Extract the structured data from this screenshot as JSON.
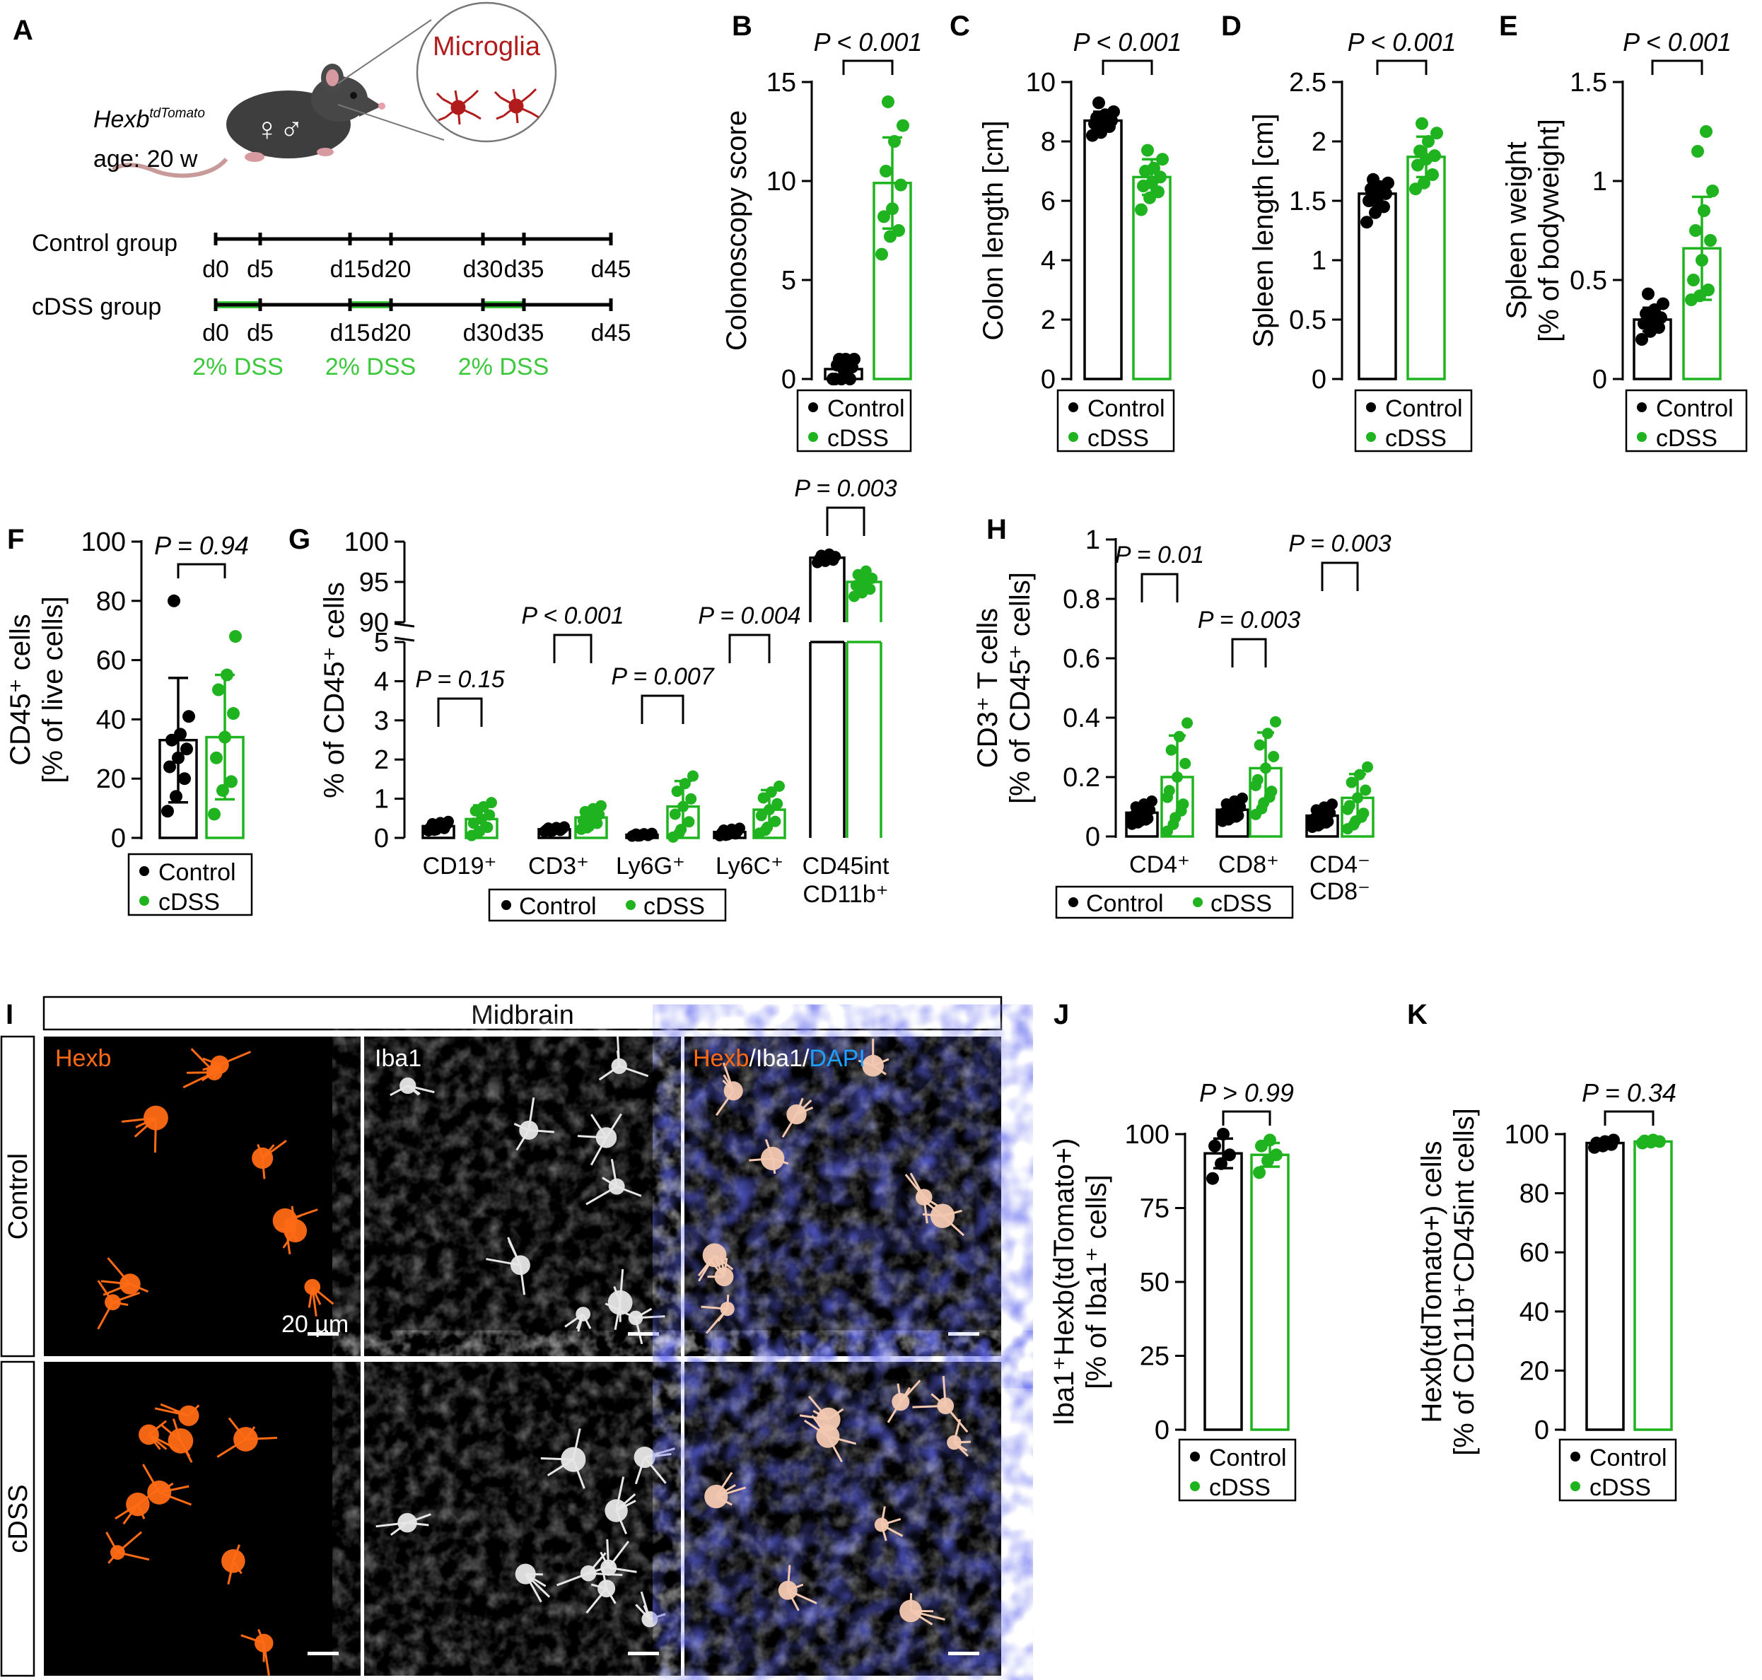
{
  "colors": {
    "control": "#000000",
    "cdss": "#1fb31f",
    "dss_green": "#3cc83c",
    "hexb": "#ff6a14",
    "dapi": "#1ea0ff",
    "microglia": "#b11b1b"
  },
  "panel_a": {
    "label": "A",
    "mouse_line": "Hexb",
    "mouse_line_sup": "tdTomato",
    "age": "age: 20 w",
    "sex_symbols": "♀♂",
    "zoom_label": "Microglia",
    "control_group": "Control group",
    "cdss_group": "cDSS group",
    "days": [
      "d0",
      "d5",
      "d15",
      "d20",
      "d30",
      "d35",
      "d45"
    ],
    "dss_label": "2% DSS"
  },
  "legend": {
    "control": "Control",
    "cdss": "cDSS"
  },
  "chart_data": [
    {
      "panel": "B",
      "type": "bar",
      "ylabel": "Colonoscopy score",
      "ylim": [
        0,
        15
      ],
      "yticks": [
        0,
        5,
        10,
        15
      ],
      "categories": [
        "Control",
        "cDSS"
      ],
      "series": [
        {
          "name": "Control",
          "mean": 0.5,
          "sd": 0.5,
          "points": [
            0,
            0,
            0,
            0,
            0.5,
            0.6,
            0.7,
            1,
            1,
            1
          ]
        },
        {
          "name": "cDSS",
          "mean": 9.9,
          "sd": 2.3,
          "points": [
            6.3,
            7.2,
            7.5,
            8.2,
            8.6,
            9.8,
            10.5,
            12,
            12.8,
            14
          ]
        }
      ],
      "pvalues": [
        "P < 0.001"
      ]
    },
    {
      "panel": "C",
      "type": "bar",
      "ylabel": "Colon length [cm]",
      "ylim": [
        0,
        10
      ],
      "yticks": [
        0,
        2,
        4,
        6,
        8,
        10
      ],
      "categories": [
        "Control",
        "cDSS"
      ],
      "series": [
        {
          "name": "Control",
          "mean": 8.7,
          "sd": 0.3,
          "points": [
            8.2,
            8.3,
            8.5,
            8.6,
            8.7,
            8.7,
            8.8,
            8.9,
            9.0,
            9.3
          ]
        },
        {
          "name": "cDSS",
          "mean": 6.8,
          "sd": 0.6,
          "points": [
            5.7,
            6.1,
            6.3,
            6.5,
            6.6,
            6.8,
            7.0,
            7.1,
            7.4,
            7.7
          ]
        }
      ],
      "pvalues": [
        "P < 0.001"
      ]
    },
    {
      "panel": "D",
      "type": "bar",
      "ylabel": "Spleen length [cm]",
      "ylim": [
        0,
        2.5
      ],
      "yticks": [
        0,
        0.5,
        1.0,
        1.5,
        2.0,
        2.5
      ],
      "categories": [
        "Control",
        "cDSS"
      ],
      "series": [
        {
          "name": "Control",
          "mean": 1.56,
          "sd": 0.1,
          "points": [
            1.32,
            1.4,
            1.45,
            1.5,
            1.52,
            1.56,
            1.6,
            1.62,
            1.65,
            1.68
          ]
        },
        {
          "name": "cDSS",
          "mean": 1.87,
          "sd": 0.17,
          "points": [
            1.6,
            1.65,
            1.72,
            1.8,
            1.85,
            1.88,
            1.92,
            2.0,
            2.07,
            2.15
          ]
        }
      ],
      "pvalues": [
        "P < 0.001"
      ]
    },
    {
      "panel": "E",
      "type": "bar",
      "ylabel": [
        "Spleen weight",
        "[% of bodyweight]"
      ],
      "ylim": [
        0,
        1.5
      ],
      "yticks": [
        0,
        0.5,
        1.0,
        1.5
      ],
      "categories": [
        "Control",
        "cDSS"
      ],
      "series": [
        {
          "name": "Control",
          "mean": 0.3,
          "sd": 0.06,
          "points": [
            0.2,
            0.24,
            0.26,
            0.28,
            0.3,
            0.31,
            0.33,
            0.35,
            0.38,
            0.43
          ]
        },
        {
          "name": "cDSS",
          "mean": 0.66,
          "sd": 0.26,
          "points": [
            0.4,
            0.42,
            0.45,
            0.5,
            0.6,
            0.7,
            0.75,
            0.85,
            0.95,
            1.15,
            1.25
          ]
        }
      ],
      "pvalues": [
        "P < 0.001"
      ]
    },
    {
      "panel": "F",
      "type": "bar",
      "ylabel": [
        "CD45⁺ cells",
        "[% of live cells]"
      ],
      "ylim": [
        0,
        100
      ],
      "yticks": [
        0,
        20,
        40,
        60,
        80,
        100
      ],
      "categories": [
        "Control",
        "cDSS"
      ],
      "series": [
        {
          "name": "Control",
          "mean": 33,
          "sd": 21,
          "points": [
            9,
            14,
            20,
            24,
            27,
            30,
            33,
            35,
            41,
            80
          ]
        },
        {
          "name": "cDSS",
          "mean": 34,
          "sd": 21,
          "points": [
            8,
            16,
            19,
            27,
            34,
            42,
            50,
            55,
            68
          ]
        }
      ],
      "pvalues": [
        "P = 0.94"
      ]
    },
    {
      "panel": "G",
      "type": "bar",
      "ylabel": "% of CD45⁺ cells",
      "ylim_lower": [
        0,
        5
      ],
      "yticks_lower": [
        0,
        1,
        2,
        3,
        4,
        5
      ],
      "ylim_upper": [
        90,
        100
      ],
      "yticks_upper": [
        90,
        95,
        100
      ],
      "categories": [
        "CD19⁺",
        "CD3⁺",
        "Ly6G⁺",
        "Ly6C⁺",
        "CD45int CD11b⁺"
      ],
      "series": [
        {
          "name": "Control",
          "means": [
            0.3,
            0.22,
            0.08,
            0.15,
            98
          ],
          "sds": [
            0.1,
            0.05,
            0.03,
            0.08,
            0.5
          ]
        },
        {
          "name": "cDSS",
          "means": [
            0.48,
            0.52,
            0.8,
            0.72,
            95
          ],
          "sds": [
            0.35,
            0.25,
            0.65,
            0.5,
            1.5
          ]
        }
      ],
      "pvalues": [
        "P = 0.15",
        "P < 0.001",
        "P = 0.007",
        "P = 0.004",
        "P = 0.003"
      ]
    },
    {
      "panel": "H",
      "type": "bar",
      "ylabel": [
        "CD3⁺ T cells",
        "[% of CD45⁺ cells]"
      ],
      "ylim": [
        0,
        1.0
      ],
      "yticks": [
        0,
        0.2,
        0.4,
        0.6,
        0.8,
        1.0
      ],
      "categories": [
        "CD4⁺",
        "CD8⁺",
        "CD4⁻ CD8⁻"
      ],
      "series": [
        {
          "name": "Control",
          "means": [
            0.08,
            0.09,
            0.07
          ],
          "sds": [
            0.03,
            0.03,
            0.03
          ]
        },
        {
          "name": "cDSS",
          "means": [
            0.2,
            0.23,
            0.13
          ],
          "sds": [
            0.14,
            0.12,
            0.08
          ]
        }
      ],
      "pvalues": [
        "P = 0.01",
        "P = 0.003",
        "P = 0.003"
      ]
    },
    {
      "panel": "J",
      "type": "bar",
      "ylabel": [
        "Iba1⁺Hexb(tdTomato+)",
        "[% of Iba1⁺ cells]"
      ],
      "ylim": [
        0,
        100
      ],
      "yticks": [
        0,
        25,
        50,
        75,
        100
      ],
      "categories": [
        "Control",
        "cDSS"
      ],
      "series": [
        {
          "name": "Control",
          "mean": 93.5,
          "sd": 5,
          "points": [
            85,
            90,
            93,
            96,
            100
          ]
        },
        {
          "name": "cDSS",
          "mean": 93,
          "sd": 4,
          "points": [
            87,
            91,
            93,
            96,
            98
          ]
        }
      ],
      "pvalues": [
        "P > 0.99"
      ]
    },
    {
      "panel": "K",
      "type": "bar",
      "ylabel": [
        "Hexb(tdTomato+) cells",
        "[% of CD11b⁺CD45int cells]"
      ],
      "ylim": [
        0,
        100
      ],
      "yticks": [
        0,
        20,
        40,
        60,
        80,
        100
      ],
      "categories": [
        "Control",
        "cDSS"
      ],
      "series": [
        {
          "name": "Control",
          "mean": 97,
          "sd": 1,
          "points": [
            95.5,
            96,
            96.5,
            97,
            97.5,
            98
          ]
        },
        {
          "name": "cDSS",
          "mean": 97.5,
          "sd": 0.5,
          "points": [
            97,
            97.3,
            97.5,
            97.7,
            98
          ]
        }
      ],
      "pvalues": [
        "P = 0.34"
      ]
    }
  ],
  "panel_i": {
    "label": "I",
    "region": "Midbrain",
    "rows": [
      "Control",
      "cDSS"
    ],
    "channels": [
      "Hexb",
      "Iba1",
      "Hexb/Iba1/DAPI"
    ],
    "merge_parts": [
      "Hexb",
      "/Iba1/",
      "DAPI"
    ],
    "scale_bar": "20 µm"
  }
}
